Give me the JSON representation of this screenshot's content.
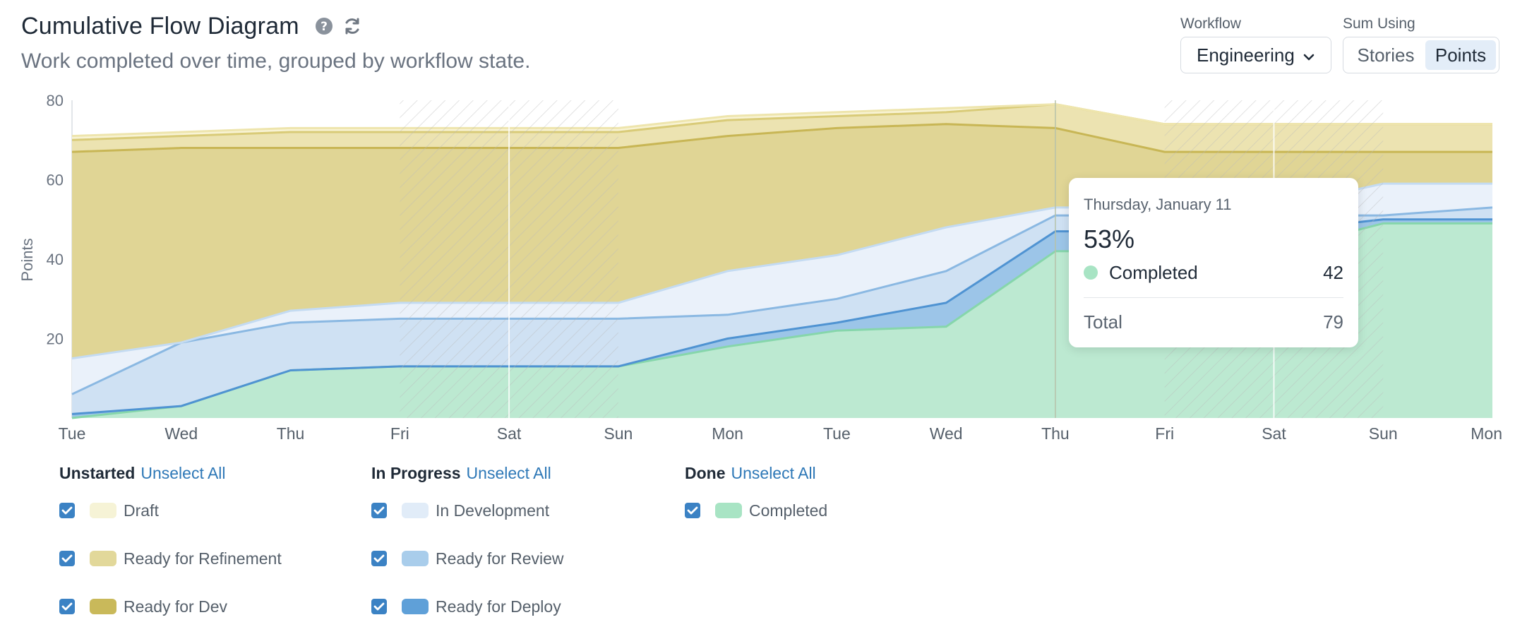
{
  "header": {
    "title": "Cumulative Flow Diagram",
    "subtitle": "Work completed over time, grouped by workflow state.",
    "help_icon": "help-circle-icon",
    "refresh_icon": "refresh-icon"
  },
  "controls": {
    "workflow_label": "Workflow",
    "workflow_value": "Engineering",
    "sum_label": "Sum Using",
    "sum_options": [
      "Stories",
      "Points"
    ],
    "sum_selected": "Points"
  },
  "tooltip": {
    "date": "Thursday, January 11",
    "percent": "53%",
    "state": "Completed",
    "state_value": "42",
    "total_label": "Total",
    "total_value": "79",
    "dot_color": "#a8e4c4"
  },
  "legend": {
    "groups": [
      {
        "name": "Unstarted",
        "link": "Unselect All",
        "items": [
          {
            "label": "Draft",
            "color": "#f6f3d6",
            "checked": true
          },
          {
            "label": "Ready for Refinement",
            "color": "#e2d89a",
            "checked": true
          },
          {
            "label": "Ready for Dev",
            "color": "#c9b95a",
            "checked": true
          }
        ]
      },
      {
        "name": "In Progress",
        "link": "Unselect All",
        "items": [
          {
            "label": "In Development",
            "color": "#e1ecf8",
            "checked": true
          },
          {
            "label": "Ready for Review",
            "color": "#a9cdeb",
            "checked": true
          },
          {
            "label": "Ready for Deploy",
            "color": "#5fa0d8",
            "checked": true
          }
        ]
      },
      {
        "name": "Done",
        "link": "Unselect All",
        "items": [
          {
            "label": "Completed",
            "color": "#a8e4c4",
            "checked": true
          }
        ]
      }
    ]
  },
  "chart_data": {
    "type": "area",
    "stacked": true,
    "ylabel": "Points",
    "ylim": [
      0,
      80
    ],
    "yticks": [
      20,
      40,
      60,
      80
    ],
    "categories": [
      "Tue",
      "Wed",
      "Thu",
      "Fri",
      "Sat",
      "Sun",
      "Mon",
      "Tue",
      "Wed",
      "Thu",
      "Fri",
      "Sat",
      "Sun",
      "Mon"
    ],
    "weekend_shading": [
      [
        3,
        5
      ],
      [
        10,
        12
      ]
    ],
    "highlight_index": 9,
    "series": [
      {
        "name": "Completed",
        "fill": "#bce9d1",
        "stroke": "#86d6ab",
        "values": [
          0,
          3,
          12,
          13,
          13,
          13,
          18,
          22,
          23,
          42,
          42,
          42,
          49,
          49
        ]
      },
      {
        "name": "Ready for Deploy",
        "fill": "#9cc5e8",
        "stroke": "#4f93d2",
        "values": [
          1,
          0,
          0,
          0,
          0,
          0,
          2,
          2,
          6,
          5,
          5,
          5,
          1,
          1
        ]
      },
      {
        "name": "Ready for Review",
        "fill": "#cfe1f3",
        "stroke": "#8ab8e2",
        "values": [
          5,
          16,
          12,
          12,
          12,
          12,
          6,
          6,
          8,
          4,
          4,
          4,
          1,
          3
        ]
      },
      {
        "name": "In Development",
        "fill": "#eaf1fa",
        "stroke": "#c4dbf2",
        "values": [
          9,
          0,
          3,
          4,
          4,
          4,
          11,
          11,
          11,
          2,
          2,
          2,
          8,
          6
        ]
      },
      {
        "name": "Ready for Dev",
        "fill": "#e0d595",
        "stroke": "#c8b655",
        "values": [
          52,
          49,
          41,
          39,
          39,
          39,
          34,
          32,
          26,
          20,
          14,
          14,
          8,
          8
        ]
      },
      {
        "name": "Ready for Refinement",
        "fill": "#ece3b1",
        "stroke": "#d9cb78",
        "values": [
          3,
          3,
          4,
          4,
          4,
          4,
          4,
          3,
          3,
          6,
          7,
          7,
          7,
          7
        ]
      },
      {
        "name": "Draft",
        "fill": "#f8f3d4",
        "stroke": "#eee5ad",
        "values": [
          1,
          1,
          1,
          1,
          1,
          1,
          1,
          1,
          1,
          0,
          0,
          0,
          0,
          0
        ]
      }
    ]
  }
}
